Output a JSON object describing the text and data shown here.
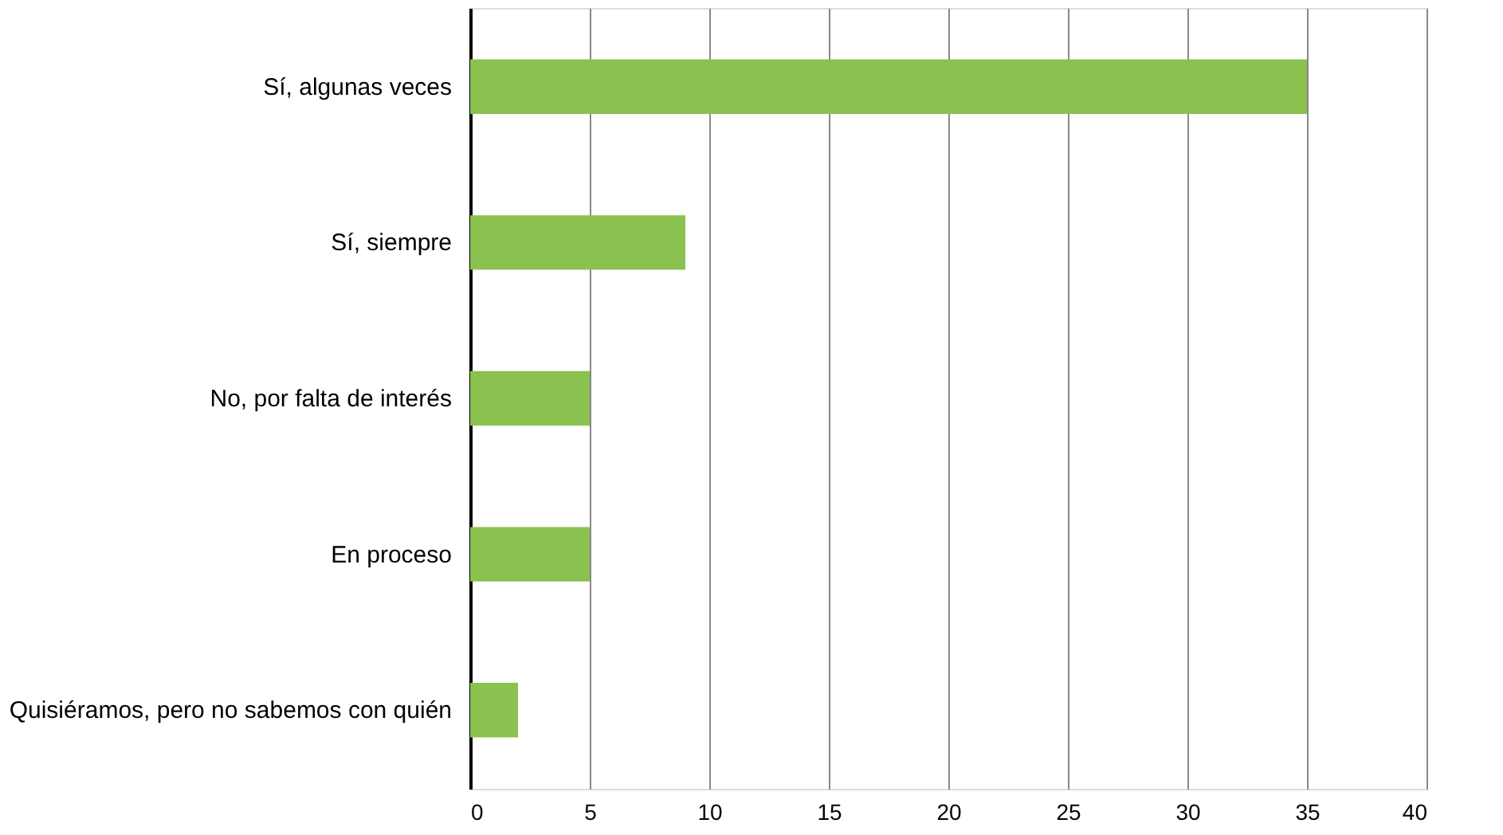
{
  "chart_data": {
    "type": "bar",
    "orientation": "horizontal",
    "categories": [
      "Sí, algunas veces",
      "Sí, siempre",
      "No, por falta de interés",
      "En proceso",
      "Quisiéramos, pero no sabemos con quién"
    ],
    "values": [
      35,
      9,
      5,
      5,
      2
    ],
    "color": "#8bc14e",
    "xlim": [
      0,
      40
    ],
    "xticks": [
      0,
      5,
      10,
      15,
      20,
      25,
      30,
      35,
      40
    ],
    "grid": "x"
  }
}
